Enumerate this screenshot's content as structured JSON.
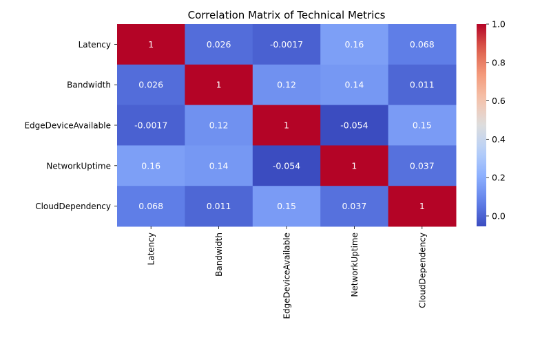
{
  "chart_data": {
    "type": "heatmap",
    "title": "Correlation Matrix of Technical Metrics",
    "xlabel": "",
    "ylabel": "",
    "rows": [
      "Latency",
      "Bandwidth",
      "EdgeDeviceAvailable",
      "NetworkUptime",
      "CloudDependency"
    ],
    "columns": [
      "Latency",
      "Bandwidth",
      "EdgeDeviceAvailable",
      "NetworkUptime",
      "CloudDependency"
    ],
    "values": [
      [
        1,
        0.026,
        -0.0017,
        0.16,
        0.068
      ],
      [
        0.026,
        1,
        0.12,
        0.14,
        0.011
      ],
      [
        -0.0017,
        0.12,
        1,
        -0.054,
        0.15
      ],
      [
        0.16,
        0.14,
        -0.054,
        1,
        0.037
      ],
      [
        0.068,
        0.011,
        0.15,
        0.037,
        1
      ]
    ],
    "value_labels": [
      [
        "1",
        "0.026",
        "-0.0017",
        "0.16",
        "0.068"
      ],
      [
        "0.026",
        "1",
        "0.12",
        "0.14",
        "0.011"
      ],
      [
        "-0.0017",
        "0.12",
        "1",
        "-0.054",
        "0.15"
      ],
      [
        "0.16",
        "0.14",
        "-0.054",
        "1",
        "0.037"
      ],
      [
        "0.068",
        "0.011",
        "0.15",
        "0.037",
        "1"
      ]
    ],
    "colormap": "coolwarm",
    "colorbar": {
      "range": [
        -0.054,
        1.0
      ],
      "ticks": [
        0.0,
        0.2,
        0.4,
        0.6,
        0.8,
        1.0
      ],
      "tick_labels": [
        "0.0",
        "0.2",
        "0.4",
        "0.6",
        "0.8",
        "1.0"
      ]
    },
    "annotate": true,
    "grid": false
  }
}
